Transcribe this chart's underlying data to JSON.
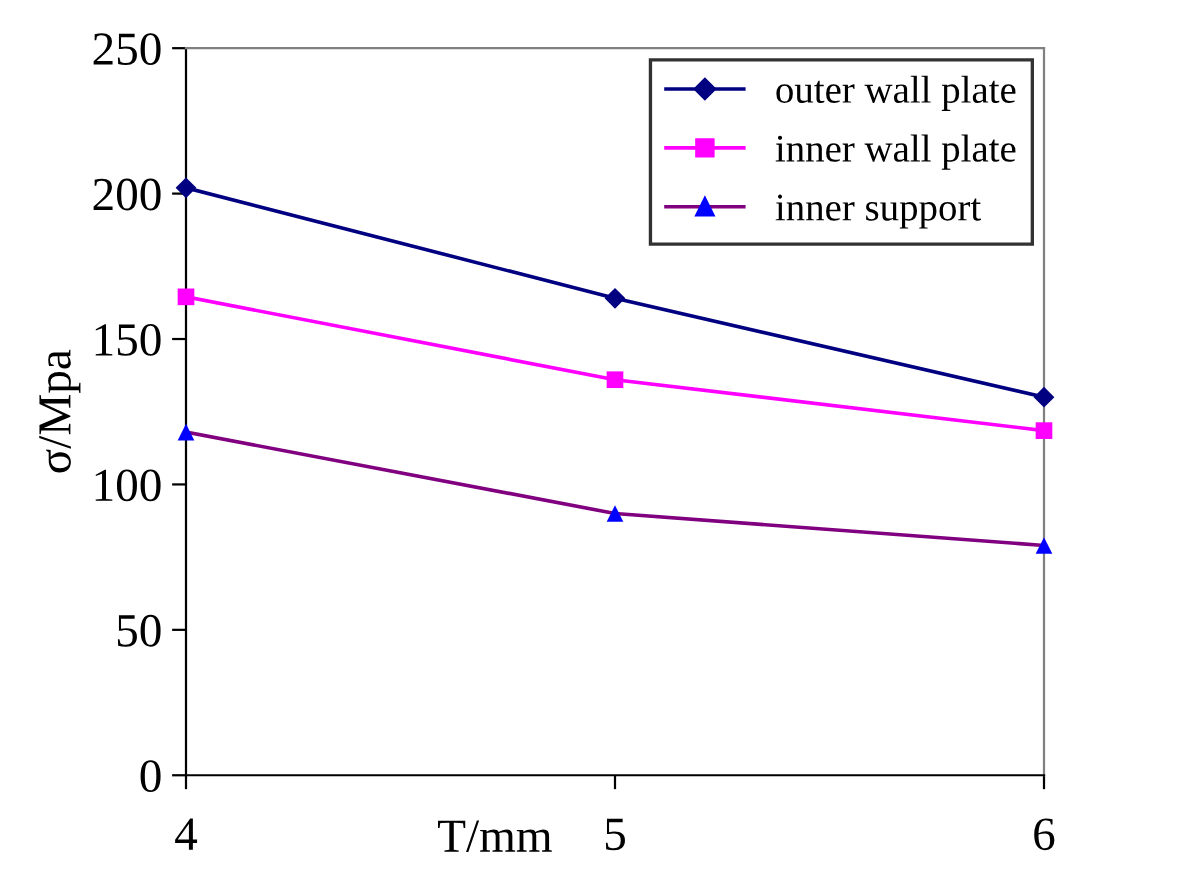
{
  "chart_data": {
    "type": "line",
    "xlabel": "T/mm",
    "ylabel": "σ/Mpa",
    "x": [
      4,
      5,
      6
    ],
    "xlim": [
      4,
      6
    ],
    "xticks": [
      4,
      5,
      6
    ],
    "ylim": [
      0,
      250
    ],
    "yticks": [
      0,
      50,
      100,
      150,
      200,
      250
    ],
    "grid": false,
    "legend": "top right",
    "series": [
      {
        "name": "outer wall plate",
        "color": "#000080",
        "marker": "diamond",
        "values": [
          202,
          164,
          130
        ]
      },
      {
        "name": "inner wall plate",
        "color": "#ff00ff",
        "marker": "square",
        "values": [
          164.5,
          136,
          118.5
        ]
      },
      {
        "name": "inner support",
        "color": "#800080",
        "colors": [
          "#0000ff",
          "#0000ff",
          "#0000ff"
        ],
        "marker": "triangle",
        "values": [
          118,
          90,
          79
        ]
      }
    ]
  }
}
